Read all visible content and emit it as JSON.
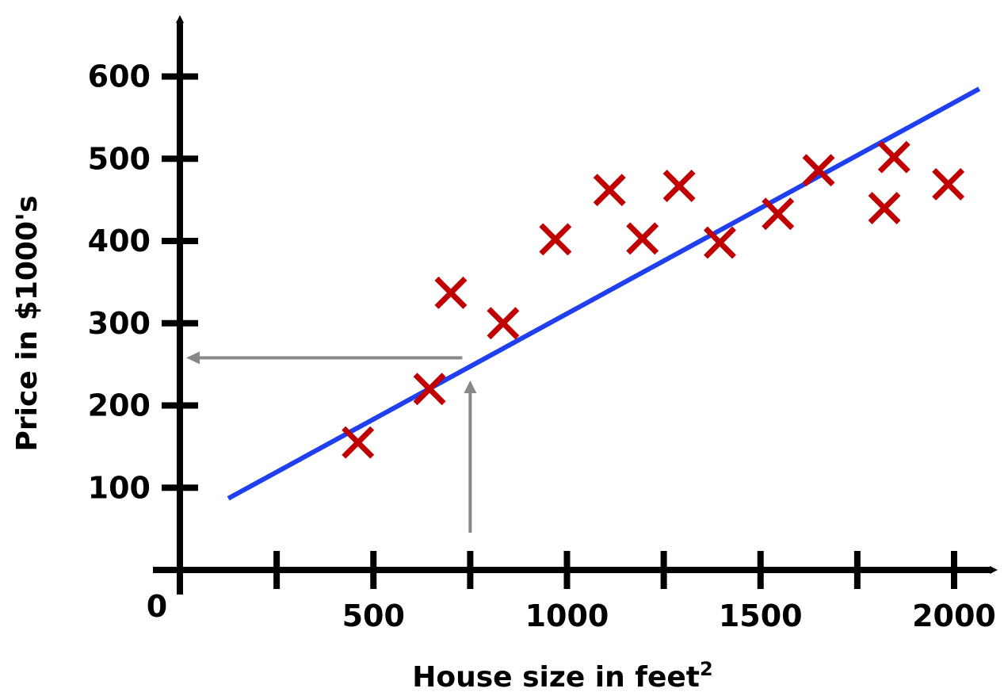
{
  "chart_data": {
    "type": "scatter",
    "xlabel": "House size in feet",
    "xlabel_sup": "2",
    "ylabel": "Price in $1000's",
    "origin_label": "0",
    "xlim": [
      0,
      2100
    ],
    "ylim": [
      0,
      660
    ],
    "x_ticks": [
      250,
      500,
      750,
      1000,
      1250,
      1500,
      1750,
      2000
    ],
    "x_tick_labels": [
      "500",
      "1000",
      "1500",
      "2000"
    ],
    "x_tick_label_values": [
      500,
      1000,
      1500,
      2000
    ],
    "y_ticks": [
      100,
      200,
      300,
      400,
      500,
      600
    ],
    "y_tick_labels": [
      "100",
      "200",
      "300",
      "400",
      "500",
      "600"
    ],
    "grid": false,
    "points": [
      {
        "x": 460,
        "y": 155
      },
      {
        "x": 645,
        "y": 220
      },
      {
        "x": 700,
        "y": 337
      },
      {
        "x": 835,
        "y": 300
      },
      {
        "x": 970,
        "y": 402
      },
      {
        "x": 1110,
        "y": 462
      },
      {
        "x": 1195,
        "y": 403
      },
      {
        "x": 1290,
        "y": 467
      },
      {
        "x": 1395,
        "y": 398
      },
      {
        "x": 1545,
        "y": 433
      },
      {
        "x": 1650,
        "y": 486
      },
      {
        "x": 1820,
        "y": 440
      },
      {
        "x": 1845,
        "y": 502
      },
      {
        "x": 1985,
        "y": 469
      }
    ],
    "fit_line": {
      "x": [
        125,
        2065
      ],
      "y": [
        87,
        585
      ]
    },
    "prediction": {
      "x": 750,
      "y": 258
    },
    "colors": {
      "points": "#c00000",
      "fit_line": "#1f3ff0",
      "guide_arrows": "#888888",
      "axes": "#000000"
    }
  }
}
